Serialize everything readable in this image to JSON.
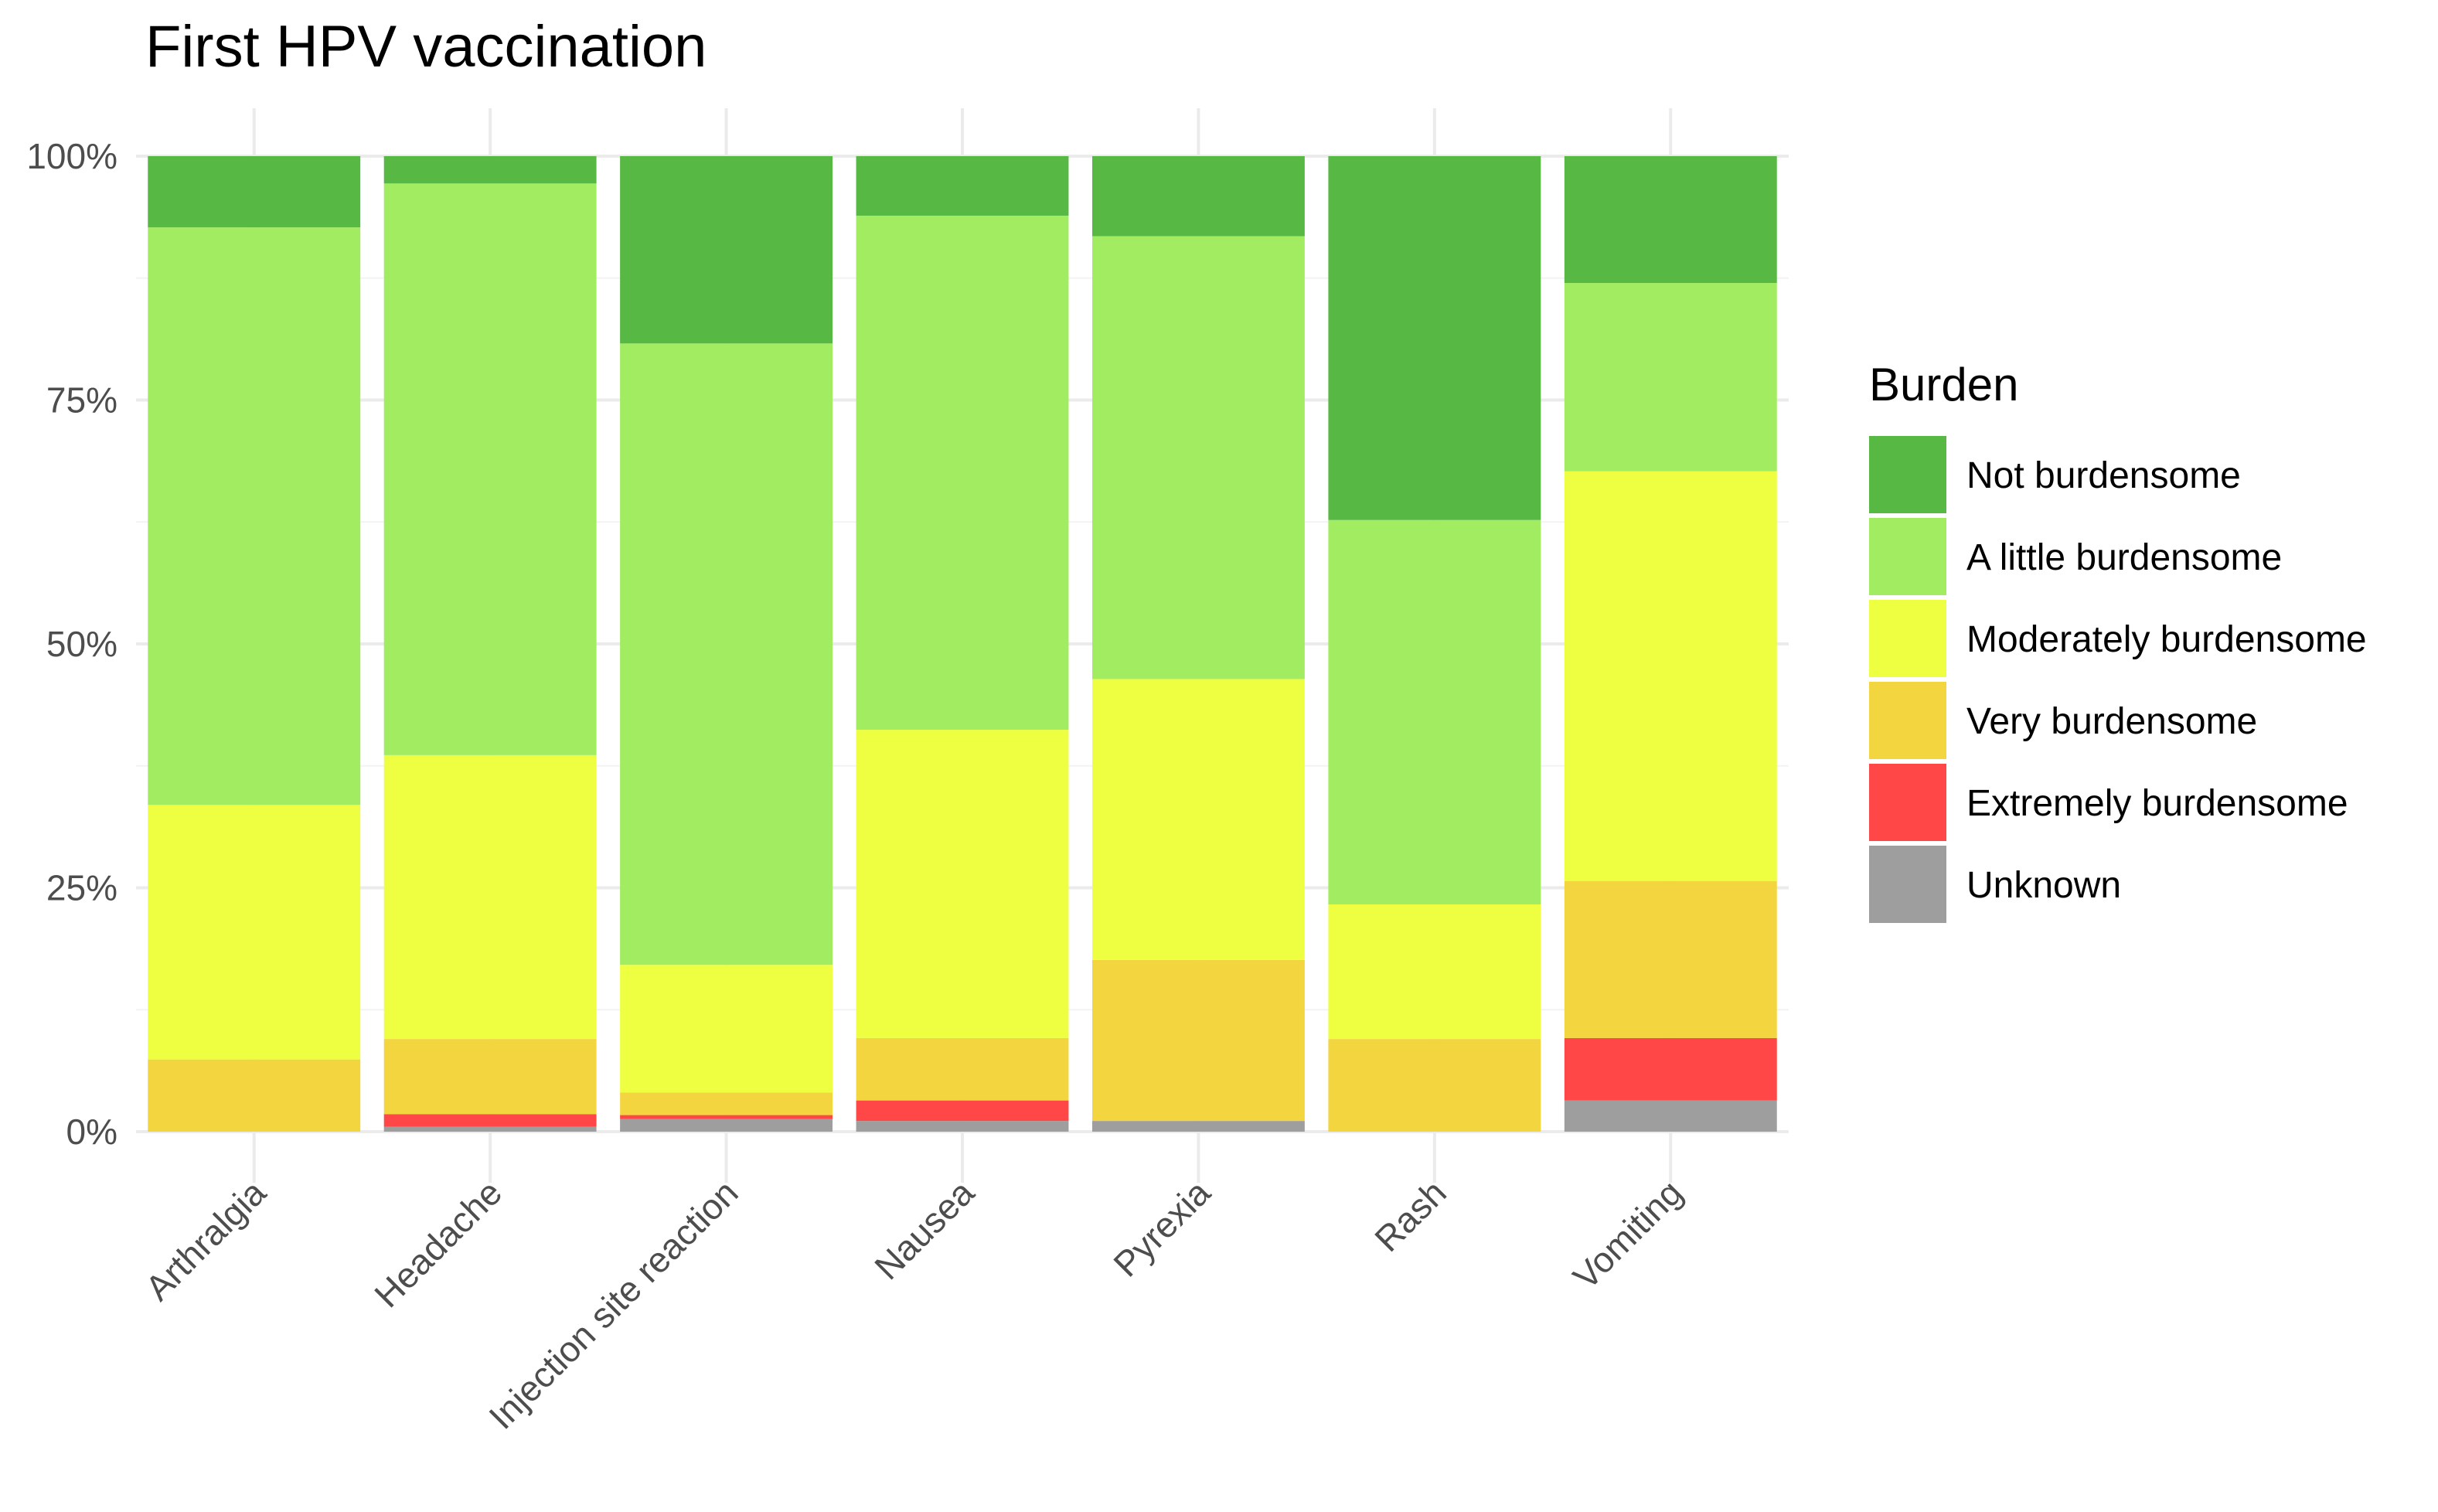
{
  "chart_data": {
    "type": "bar",
    "stacked": true,
    "title": "First HPV vaccination",
    "xlabel": "",
    "ylabel": "",
    "ylim": [
      0,
      100
    ],
    "y_ticks": [
      "0%",
      "25%",
      "50%",
      "75%",
      "100%"
    ],
    "categories": [
      "Arthralgia",
      "Headache",
      "Injection site reaction",
      "Nausea",
      "Pyrexia",
      "Rash",
      "Vomiting"
    ],
    "legend_title": "Burden",
    "legend_position": "right",
    "series": [
      {
        "name": "Unknown",
        "color": "#9e9e9e",
        "values": [
          0,
          0.5,
          1.3,
          1.1,
          1.1,
          0,
          3.2
        ]
      },
      {
        "name": "Extremely burdensome",
        "color": "#ff4747",
        "values": [
          0,
          1.3,
          0.4,
          2.1,
          0,
          0,
          6.4
        ]
      },
      {
        "name": "Very burdensome",
        "color": "#f3d53f",
        "values": [
          7.4,
          7.7,
          2.3,
          6.4,
          16.5,
          9.5,
          16.1
        ]
      },
      {
        "name": "Moderately burdensome",
        "color": "#eeff41",
        "values": [
          26.1,
          29.1,
          13.1,
          31.6,
          28.8,
          13.8,
          42.0
        ]
      },
      {
        "name": "A little burdensome",
        "color": "#a1ec60",
        "values": [
          59.2,
          58.6,
          63.7,
          52.7,
          45.4,
          39.4,
          19.3
        ]
      },
      {
        "name": "Not burdensome",
        "color": "#57b844",
        "values": [
          7.3,
          2.8,
          19.2,
          6.1,
          8.2,
          37.3,
          13.0
        ]
      }
    ],
    "legend_order": [
      "Not burdensome",
      "A little burdensome",
      "Moderately burdensome",
      "Very burdensome",
      "Extremely burdensome",
      "Unknown"
    ]
  }
}
